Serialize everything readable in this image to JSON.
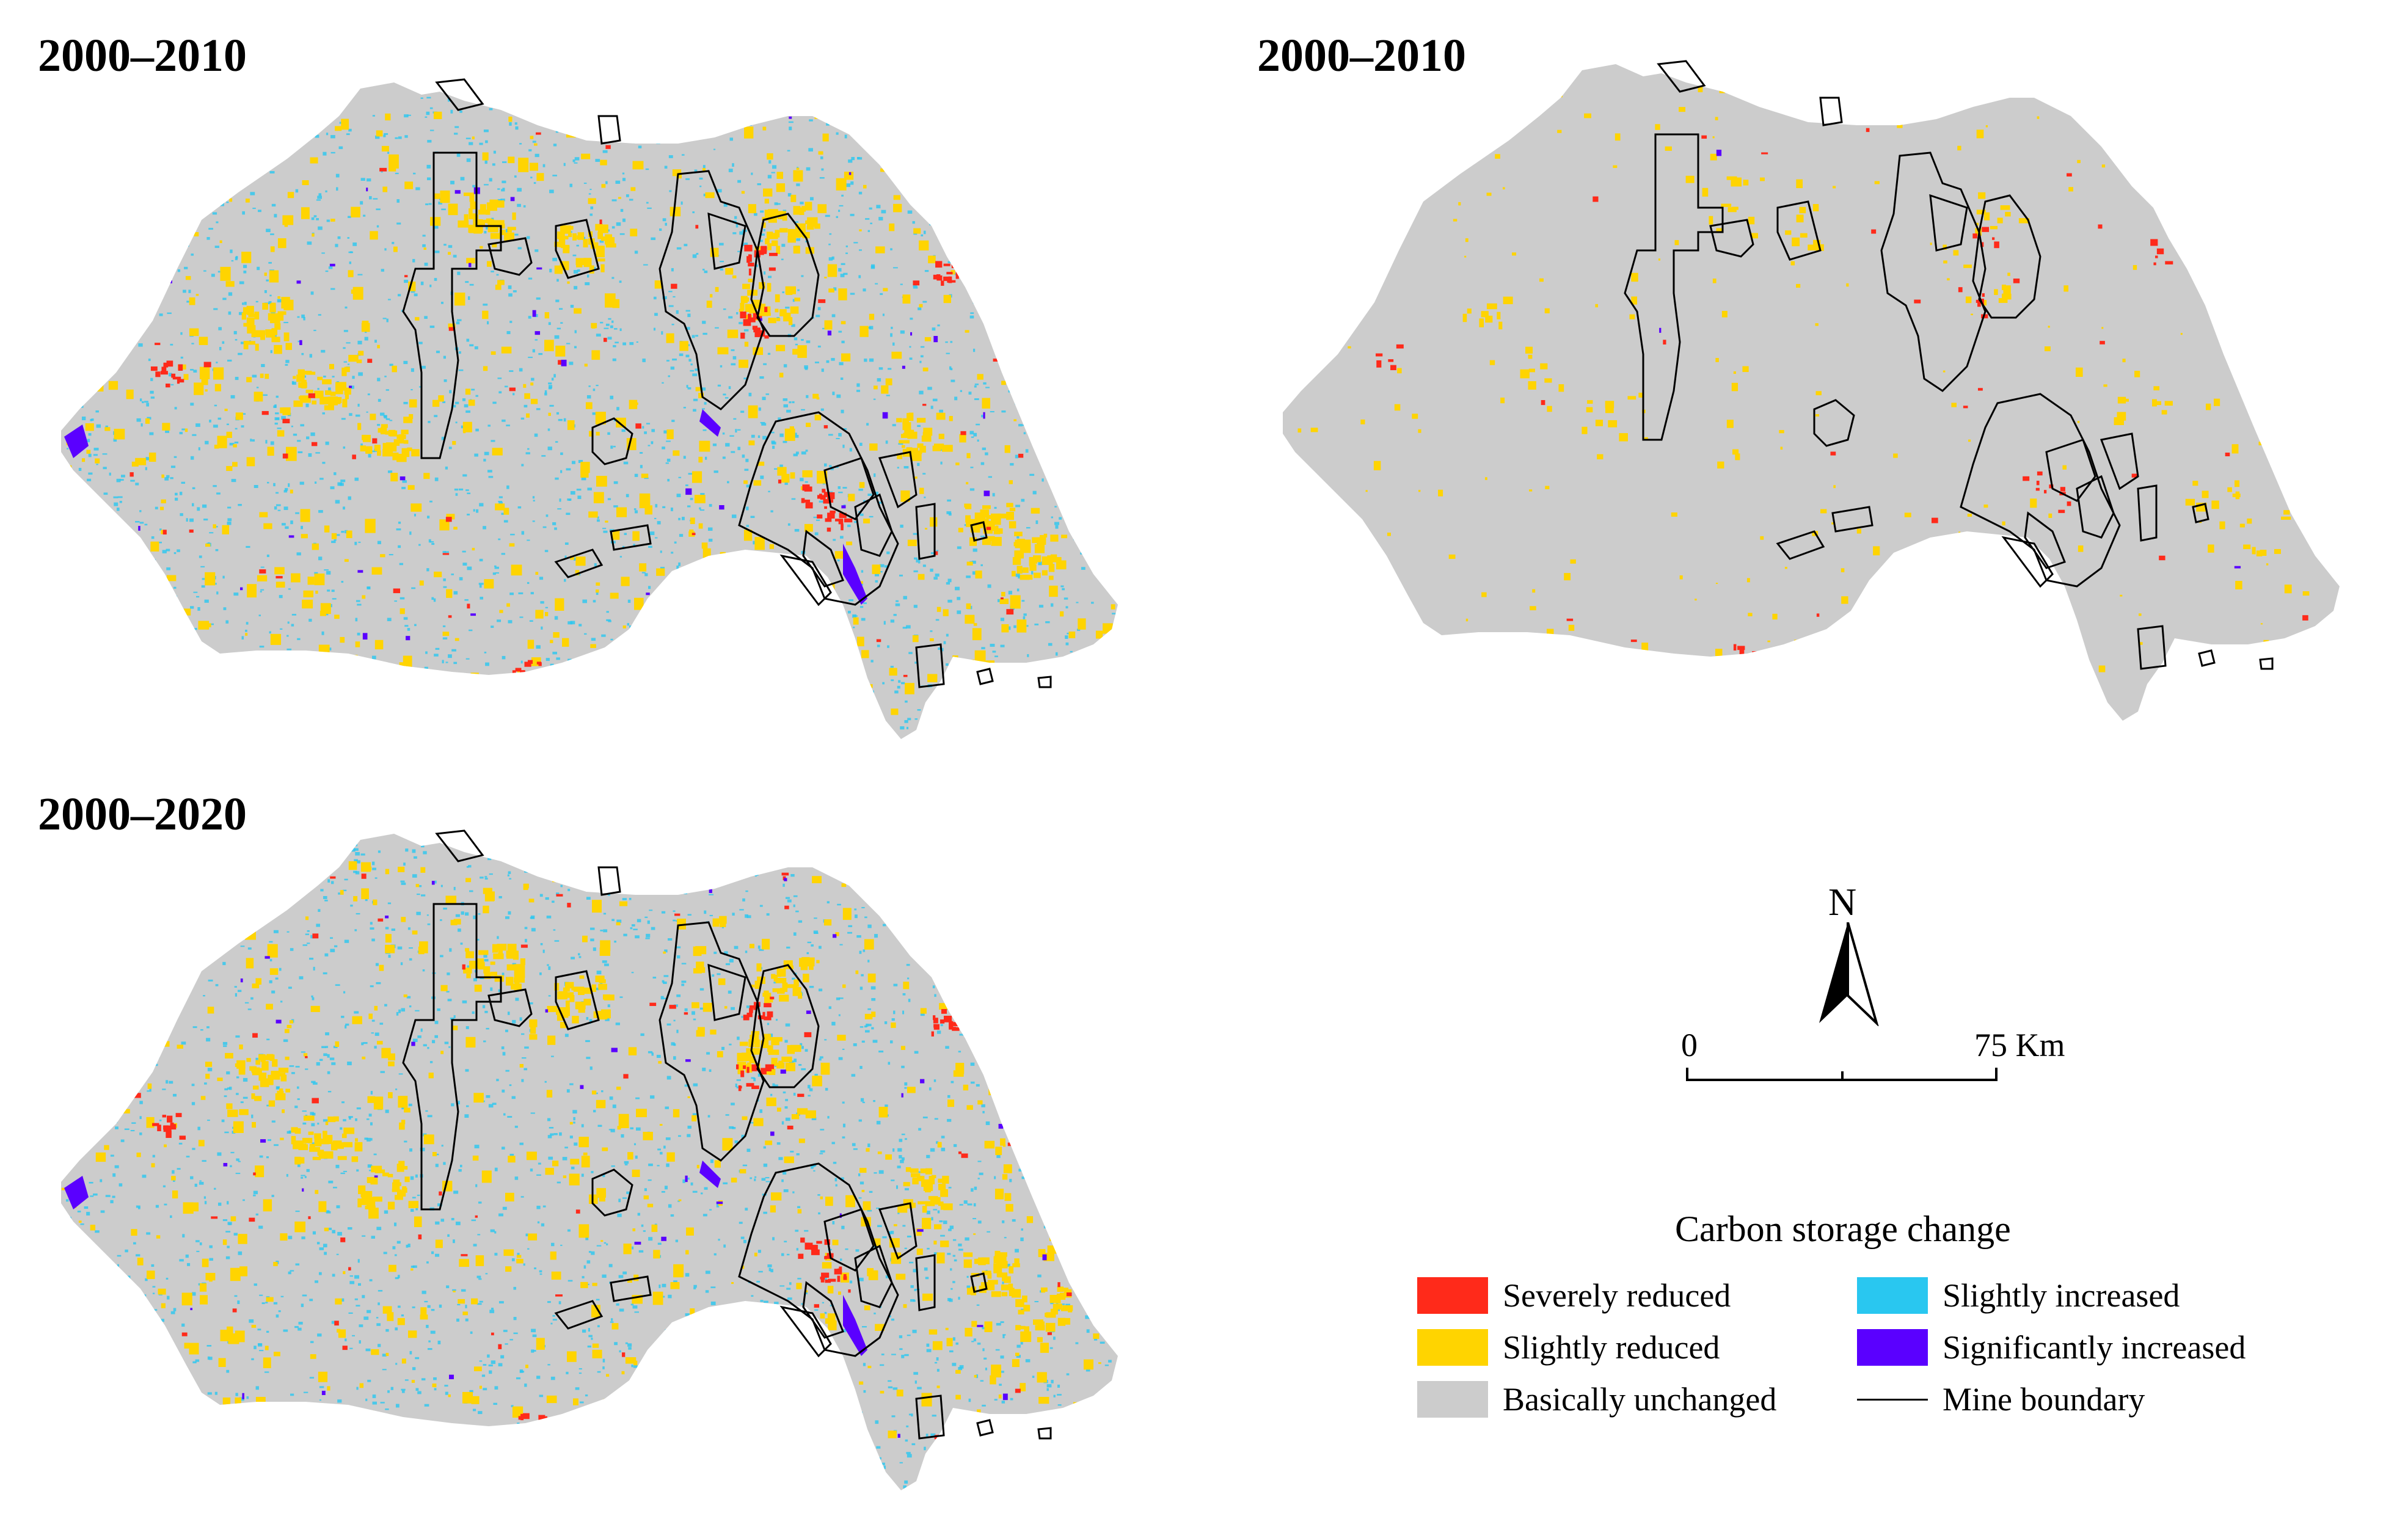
{
  "panels": [
    {
      "title": "2000–2010",
      "style": "detailed"
    },
    {
      "title": "2000–2010",
      "style": "sparse"
    },
    {
      "title": "2000–2020",
      "style": "detailed"
    }
  ],
  "north_arrow": {
    "letter": "N"
  },
  "scale_bar": {
    "start_label": "0",
    "end_label": "75 Km"
  },
  "legend": {
    "title": "Carbon storage change",
    "items": [
      {
        "label": "Severely reduced",
        "color": "#ff2a1a"
      },
      {
        "label": "Slightly reduced",
        "color": "#ffd400"
      },
      {
        "label": "Basically unchanged",
        "color": "#cccccc"
      },
      {
        "label": "Slightly increased",
        "color": "#29c7f0"
      },
      {
        "label": "Significantly increased",
        "color": "#5a00ff"
      },
      {
        "label": "Mine boundary",
        "color": "#000000"
      }
    ]
  }
}
